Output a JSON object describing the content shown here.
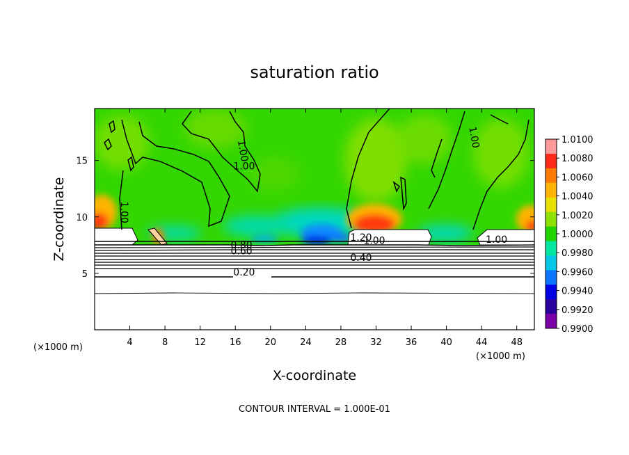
{
  "chart_data": {
    "type": "heatmap",
    "title": "saturation ratio",
    "xlabel": "X-coordinate",
    "ylabel": "Z-coordinate",
    "x_unit": "(×1000 m)",
    "xlim": [
      0,
      50
    ],
    "ylim": [
      0,
      19.6
    ],
    "x_ticks": [
      4,
      8,
      12,
      16,
      20,
      24,
      28,
      32,
      36,
      40,
      44,
      48
    ],
    "y_ticks": [
      5,
      10,
      15
    ],
    "colorbar": {
      "min": 0.99,
      "max": 1.01,
      "labels": [
        "1.0100",
        "1.0080",
        "1.0060",
        "1.0040",
        "1.0020",
        "1.0000",
        "0.9980",
        "0.9960",
        "0.9940",
        "0.9920",
        "0.9900"
      ],
      "colors": [
        "#ff9a9a",
        "#ff2a1a",
        "#ff7a00",
        "#ffb300",
        "#e8e000",
        "#8ee000",
        "#22d400",
        "#00e6a0",
        "#00c8e6",
        "#0a73ff",
        "#0000e6",
        "#2a00a0",
        "#7a00a8"
      ]
    },
    "contour_labels": [
      {
        "text": "1.00",
        "x": 17,
        "y": 14.2
      },
      {
        "text": "1.00",
        "x": 16.5,
        "y": 15.8
      },
      {
        "text": "1.00",
        "x": 3.0,
        "y": 10.4
      },
      {
        "text": "1.00",
        "x": 42.8,
        "y": 17.0
      },
      {
        "text": "0.80",
        "x": 16.7,
        "y": 7.2
      },
      {
        "text": "0.60",
        "x": 16.7,
        "y": 6.7
      },
      {
        "text": "1.20",
        "x": 30.3,
        "y": 7.9
      },
      {
        "text": "1.00",
        "x": 31.8,
        "y": 7.6
      },
      {
        "text": "1.00",
        "x": 45.7,
        "y": 7.7
      },
      {
        "text": "0.40",
        "x": 30.3,
        "y": 6.1
      },
      {
        "text": "0.20",
        "x": 17.0,
        "y": 4.8
      }
    ],
    "contour_interval_note": "CONTOUR INTERVAL = 1.000E-01"
  }
}
